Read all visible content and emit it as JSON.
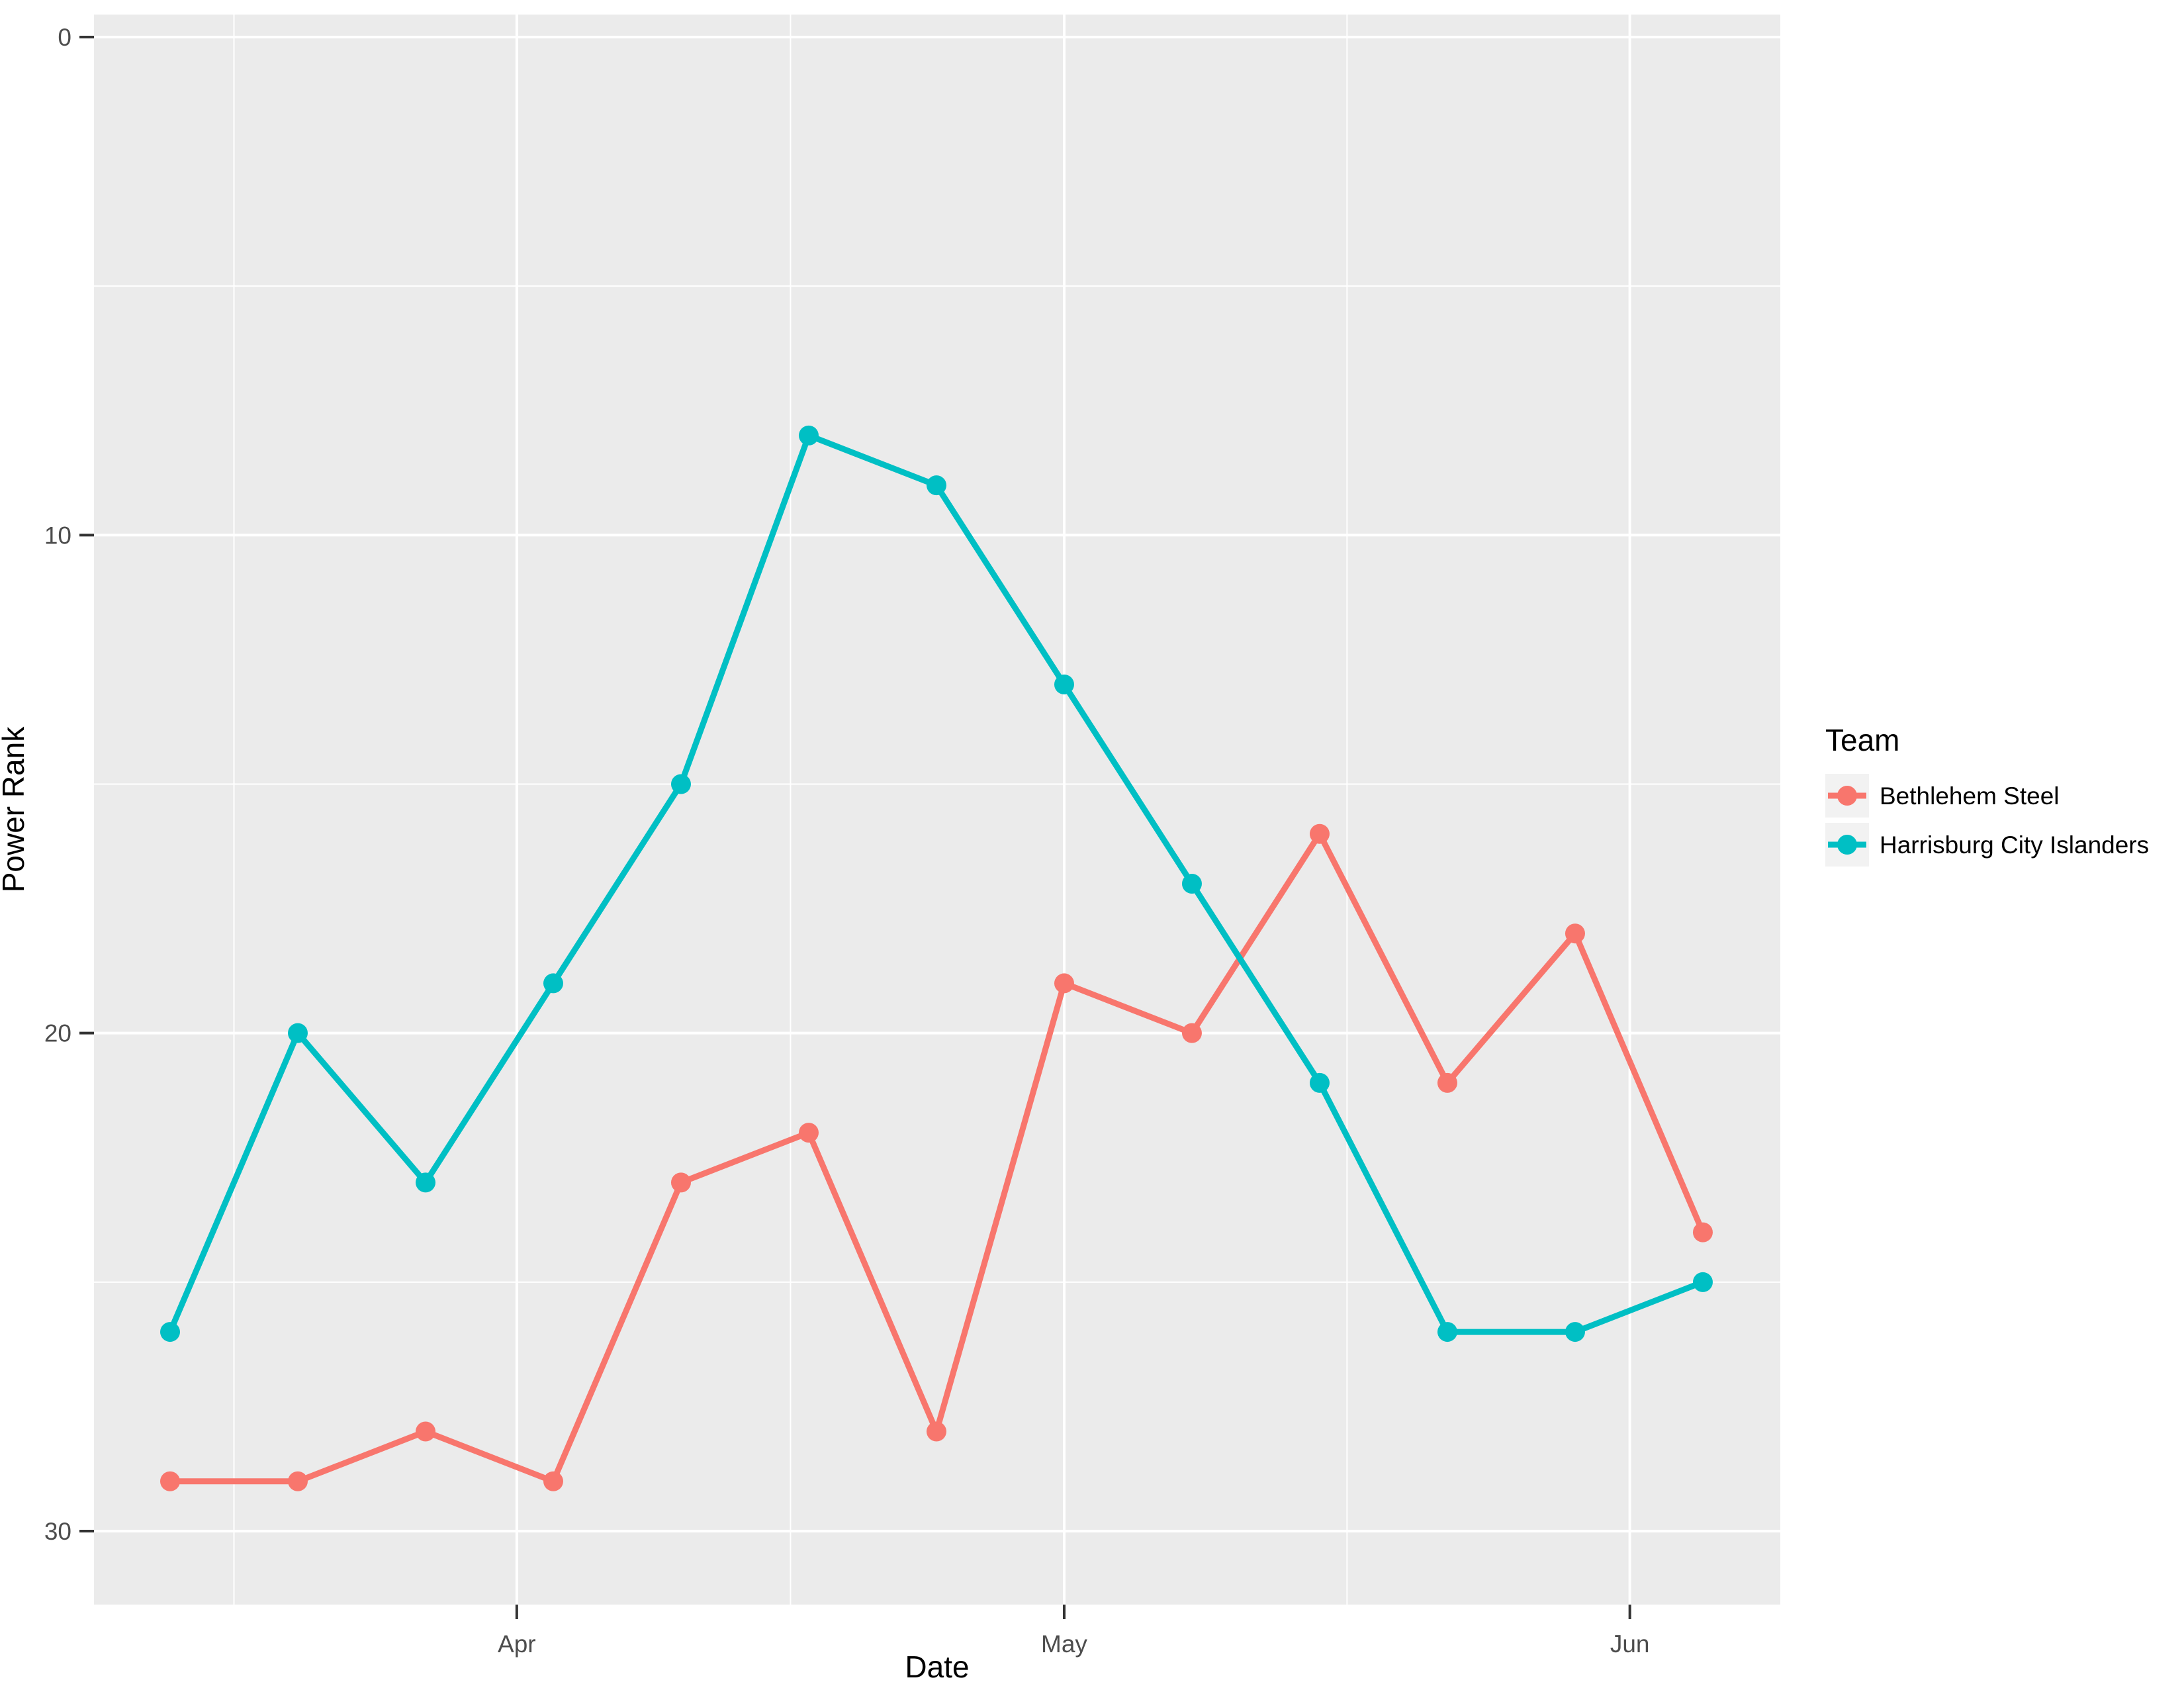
{
  "chart_data": {
    "type": "line",
    "title": "",
    "xlabel": "Date",
    "ylabel": "Power Rank",
    "x": [
      "2017-03-13",
      "2017-03-20",
      "2017-03-27",
      "2017-04-03",
      "2017-04-10",
      "2017-04-17",
      "2017-04-24",
      "2017-05-01",
      "2017-05-08",
      "2017-05-15",
      "2017-05-22",
      "2017-05-29",
      "2017-06-05"
    ],
    "series": [
      {
        "name": "Bethlehem Steel",
        "color": "#F8766D",
        "values": [
          29,
          29,
          28,
          29,
          23,
          22,
          28,
          19,
          20,
          16,
          21,
          18,
          24
        ]
      },
      {
        "name": "Harrisburg City Islanders",
        "color": "#00BFC4",
        "values": [
          26,
          20,
          23,
          19,
          15,
          8,
          9,
          13,
          17,
          21,
          26,
          26,
          25
        ]
      }
    ],
    "y_axis": {
      "reversed": true,
      "major_breaks": [
        0,
        10,
        20,
        30
      ],
      "minor_breaks": [
        5,
        15,
        25
      ],
      "tick_labels": [
        "0",
        "10",
        "20",
        "30"
      ],
      "range_top": 0,
      "range_bottom": 30
    },
    "x_axis": {
      "major_breaks": [
        "2017-04-01",
        "2017-05-01",
        "2017-06-01"
      ],
      "minor_breaks": [
        "2017-03-16T12:00:00Z",
        "2017-04-16T00:00:00Z",
        "2017-05-16T12:00:00Z"
      ],
      "tick_labels": [
        "Apr",
        "May",
        "Jun"
      ]
    },
    "legend": {
      "title": "Team",
      "position": "right"
    },
    "style": {
      "panel_bg": "#EBEBEB",
      "grid_color": "#FFFFFF",
      "axis_text_color": "#4D4D4D",
      "tick_color": "#333333",
      "axis_title_color": "#000000",
      "legend_key_bg": "#F2F2F2"
    },
    "grid": true
  }
}
